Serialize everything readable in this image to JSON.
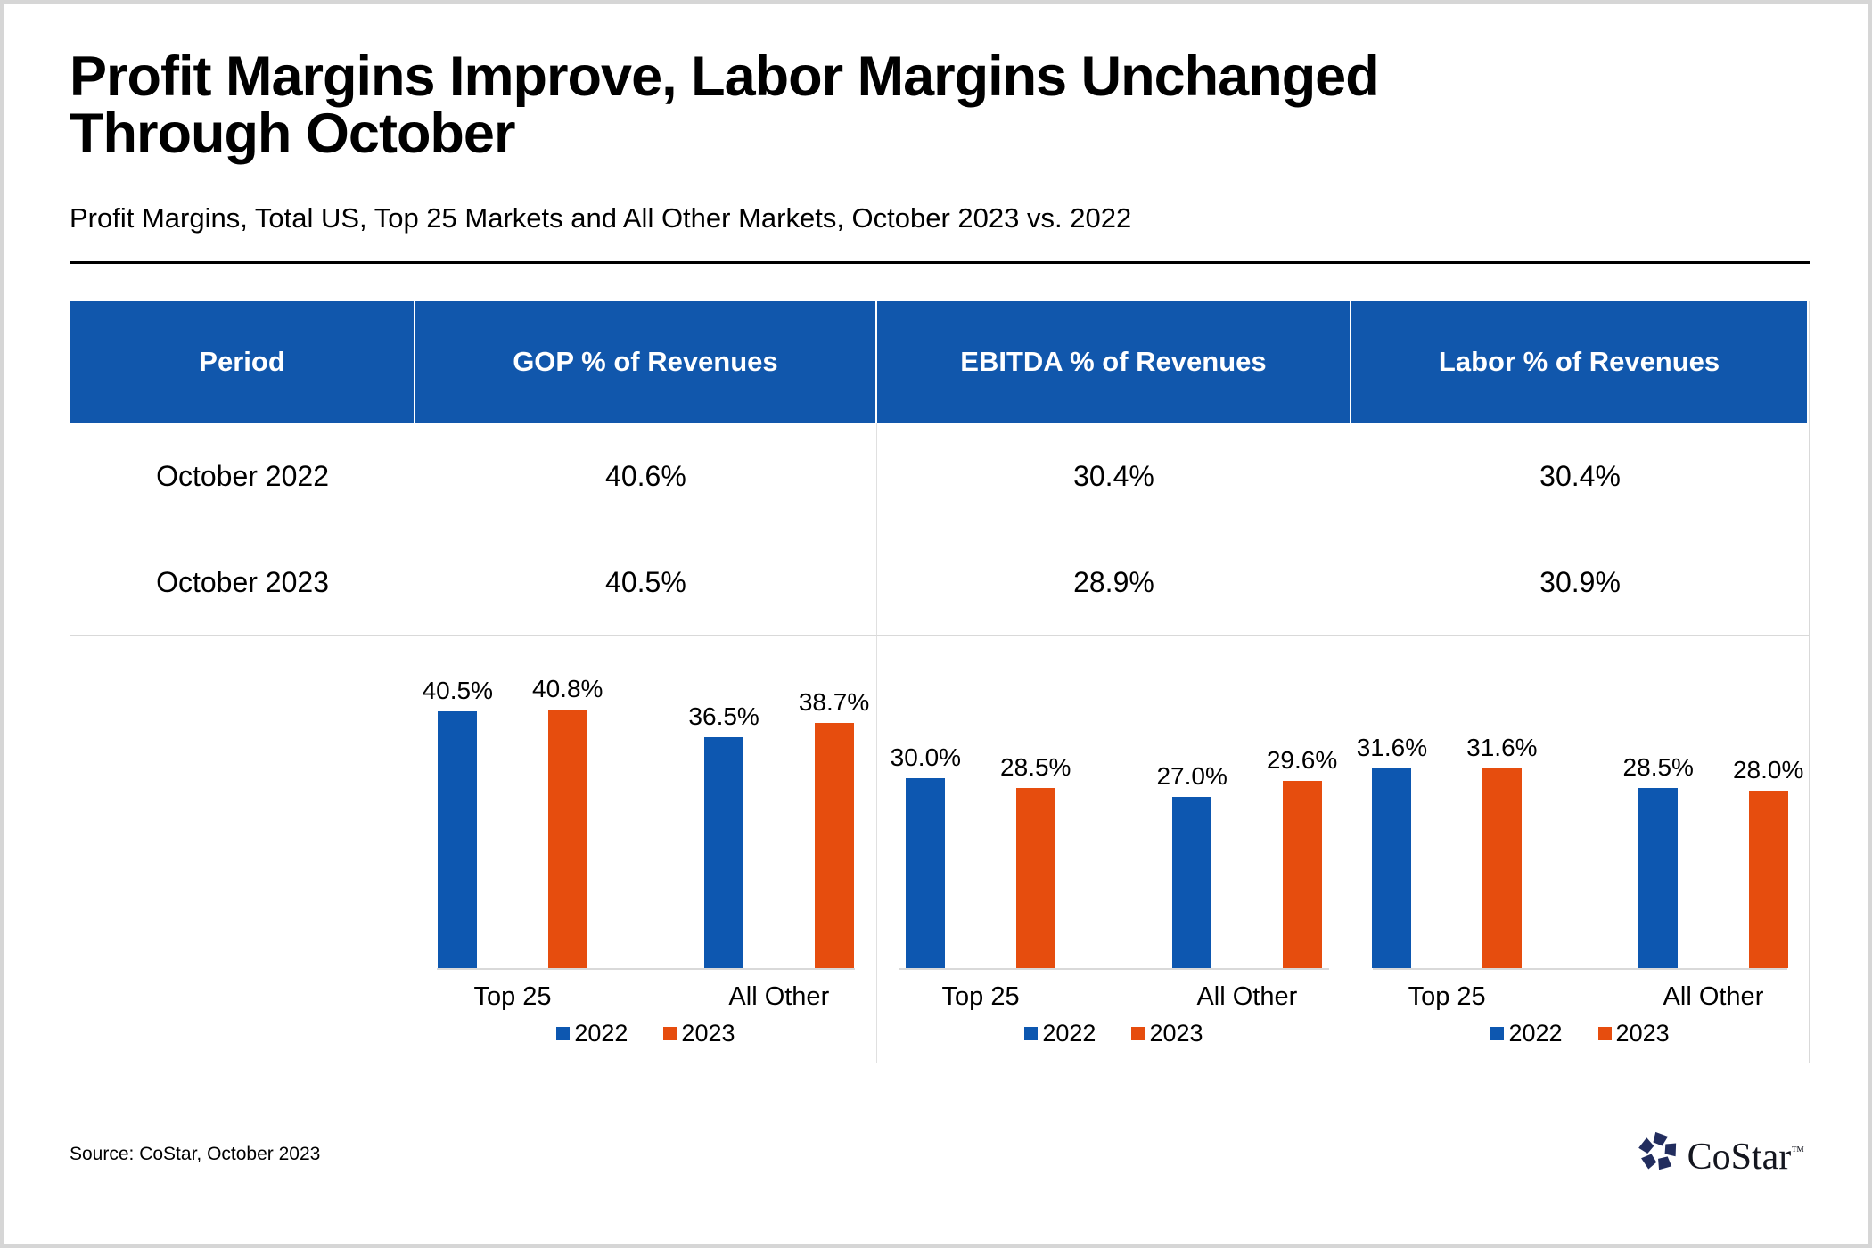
{
  "page": {
    "title_line1": "Profit Margins Improve, Labor Margins Unchanged",
    "title_line2": "Through October",
    "subtitle": "Profit Margins, Total US, Top 25 Markets and All Other Markets, October 2023 vs. 2022",
    "source": "Source: CoStar, October 2023",
    "logo_text": "CoStar",
    "logo_tm": "™"
  },
  "colors": {
    "header_blue": "#1157AC",
    "bar_blue": "#0D57B0",
    "bar_orange": "#E64D0E",
    "grid_gray": "#D9D9D9",
    "logo_navy": "#222D5E"
  },
  "table": {
    "headers": [
      "Period",
      "GOP % of Revenues",
      "EBITDA % of Revenues",
      "Labor % of Revenues"
    ],
    "rows": [
      {
        "period": "October 2022",
        "gop": "40.6%",
        "ebitda": "30.4%",
        "labor": "30.4%"
      },
      {
        "period": "October 2023",
        "gop": "40.5%",
        "ebitda": "28.9%",
        "labor": "30.9%"
      }
    ]
  },
  "chart_data": [
    {
      "type": "bar",
      "title": "GOP % of Revenues",
      "categories": [
        "Top 25",
        "All Other"
      ],
      "series": [
        {
          "name": "2022",
          "values": [
            40.5,
            36.5
          ],
          "value_labels": [
            "40.5%",
            "36.5%"
          ]
        },
        {
          "name": "2023",
          "values": [
            40.8,
            38.7
          ],
          "value_labels": [
            "40.8%",
            "38.7%"
          ]
        }
      ],
      "ylim": [
        0,
        45
      ],
      "unit": "%",
      "grid": false,
      "legend_position": "bottom"
    },
    {
      "type": "bar",
      "title": "EBITDA % of Revenues",
      "categories": [
        "Top 25",
        "All Other"
      ],
      "series": [
        {
          "name": "2022",
          "values": [
            30.0,
            27.0
          ],
          "value_labels": [
            "30.0%",
            "27.0%"
          ]
        },
        {
          "name": "2023",
          "values": [
            28.5,
            29.6
          ],
          "value_labels": [
            "28.5%",
            "29.6%"
          ]
        }
      ],
      "ylim": [
        0,
        45
      ],
      "unit": "%",
      "grid": false,
      "legend_position": "bottom"
    },
    {
      "type": "bar",
      "title": "Labor % of Revenues",
      "categories": [
        "Top 25",
        "All Other"
      ],
      "series": [
        {
          "name": "2022",
          "values": [
            31.6,
            28.5
          ],
          "value_labels": [
            "31.6%",
            "28.5%"
          ]
        },
        {
          "name": "2023",
          "values": [
            31.6,
            28.0
          ],
          "value_labels": [
            "31.6%",
            "28.0%"
          ]
        }
      ],
      "ylim": [
        0,
        45
      ],
      "unit": "%",
      "grid": false,
      "legend_position": "bottom"
    }
  ]
}
